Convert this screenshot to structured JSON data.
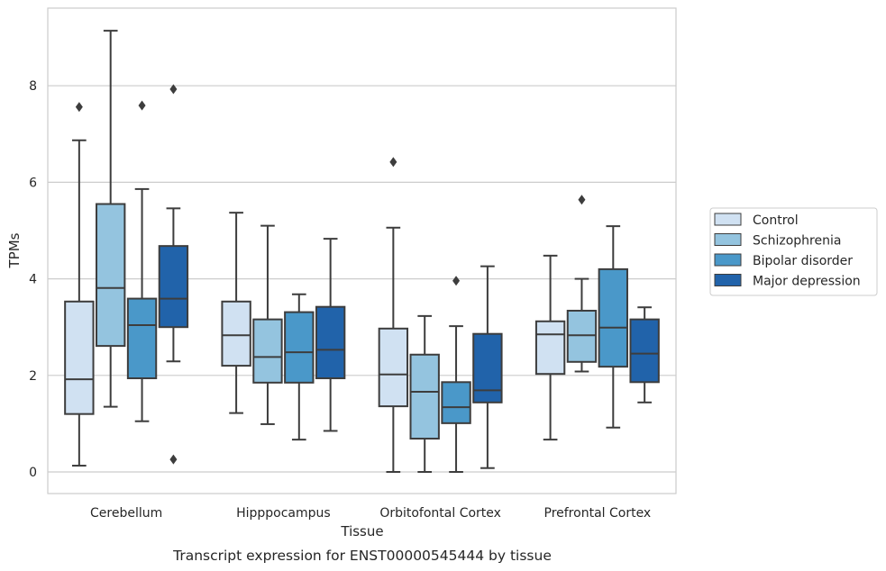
{
  "chart_data": {
    "type": "box",
    "xlabel": "Tissue",
    "ylabel": "TPMs",
    "caption": "Transcript expression for ENST00000545444 by tissue",
    "ylim": [
      -0.45,
      9.7
    ],
    "yticks": [
      0,
      2,
      4,
      6,
      8
    ],
    "grid": true,
    "legend_position": "right",
    "categories": [
      "Cerebellum",
      "Hipppocampus",
      "Orbitofontal Cortex",
      "Prefrontal Cortex"
    ],
    "series": [
      {
        "name": "Control",
        "color": "#d0e1f2",
        "boxes": [
          {
            "whislo": 0.13,
            "q1": 1.2,
            "med": 1.92,
            "q3": 3.53,
            "whishi": 6.87,
            "fliers": [
              7.56
            ]
          },
          {
            "whislo": 1.22,
            "q1": 2.2,
            "med": 2.83,
            "q3": 3.53,
            "whishi": 5.37,
            "fliers": []
          },
          {
            "whislo": 0.0,
            "q1": 1.36,
            "med": 2.02,
            "q3": 2.97,
            "whishi": 5.06,
            "fliers": [
              6.42
            ]
          },
          {
            "whislo": 0.67,
            "q1": 2.03,
            "med": 2.85,
            "q3": 3.12,
            "whishi": 4.48,
            "fliers": []
          }
        ]
      },
      {
        "name": "Schizophrenia",
        "color": "#94c4df",
        "boxes": [
          {
            "whislo": 1.35,
            "q1": 2.61,
            "med": 3.81,
            "q3": 5.55,
            "whishi": 9.14,
            "fliers": []
          },
          {
            "whislo": 0.99,
            "q1": 1.85,
            "med": 2.38,
            "q3": 3.16,
            "whishi": 5.1,
            "fliers": []
          },
          {
            "whislo": 0.0,
            "q1": 0.69,
            "med": 1.66,
            "q3": 2.43,
            "whishi": 3.23,
            "fliers": []
          },
          {
            "whislo": 2.08,
            "q1": 2.28,
            "med": 2.83,
            "q3": 3.34,
            "whishi": 4.0,
            "fliers": [
              5.64
            ]
          }
        ]
      },
      {
        "name": "Bipolar disorder",
        "color": "#4a98c9",
        "boxes": [
          {
            "whislo": 1.05,
            "q1": 1.94,
            "med": 3.04,
            "q3": 3.59,
            "whishi": 5.86,
            "fliers": [
              7.59
            ]
          },
          {
            "whislo": 0.67,
            "q1": 1.85,
            "med": 2.48,
            "q3": 3.31,
            "whishi": 3.68,
            "fliers": []
          },
          {
            "whislo": 0.0,
            "q1": 1.01,
            "med": 1.34,
            "q3": 1.86,
            "whishi": 3.02,
            "fliers": [
              3.96
            ]
          },
          {
            "whislo": 0.92,
            "q1": 2.18,
            "med": 2.99,
            "q3": 4.2,
            "whishi": 5.09,
            "fliers": []
          }
        ]
      },
      {
        "name": "Major depression",
        "color": "#2163aa",
        "boxes": [
          {
            "whislo": 2.29,
            "q1": 3.0,
            "med": 3.59,
            "q3": 4.68,
            "whishi": 5.46,
            "fliers": [
              7.93,
              0.26
            ]
          },
          {
            "whislo": 0.85,
            "q1": 1.94,
            "med": 2.53,
            "q3": 3.42,
            "whishi": 4.83,
            "fliers": []
          },
          {
            "whislo": 0.08,
            "q1": 1.44,
            "med": 1.69,
            "q3": 2.86,
            "whishi": 4.26,
            "fliers": []
          },
          {
            "whislo": 1.44,
            "q1": 1.86,
            "med": 2.45,
            "q3": 3.16,
            "whishi": 3.41,
            "fliers": []
          }
        ]
      }
    ]
  }
}
